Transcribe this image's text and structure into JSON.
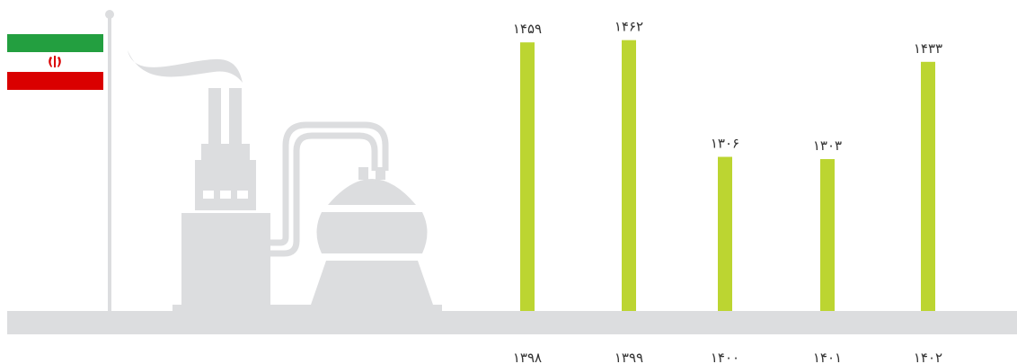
{
  "colors": {
    "bar": "#bcd531",
    "illustration": "#dcdddf",
    "label": "#333333",
    "flag_green": "#239f40",
    "flag_white": "#ffffff",
    "flag_red": "#da0000"
  },
  "icons": [
    "iran-flag-icon",
    "flagpole-icon",
    "factory-icon",
    "storage-tank-icon"
  ],
  "chart_data": {
    "type": "bar",
    "categories": [
      "۱۳۹۸",
      "۱۳۹۹",
      "۱۴۰۰",
      "۱۴۰۱",
      "۱۴۰۲"
    ],
    "values": [
      145.9,
      146.2,
      130.6,
      130.3,
      143.3
    ],
    "value_labels": [
      "۱۴۵۹",
      "۱۴۶۲",
      "۱۳۰۶",
      "۱۳۰۳",
      "۱۴۳۳"
    ],
    "title": "",
    "xlabel": "",
    "ylabel": "",
    "ylim": [
      110,
      147
    ],
    "grid": false,
    "legend": "none"
  }
}
